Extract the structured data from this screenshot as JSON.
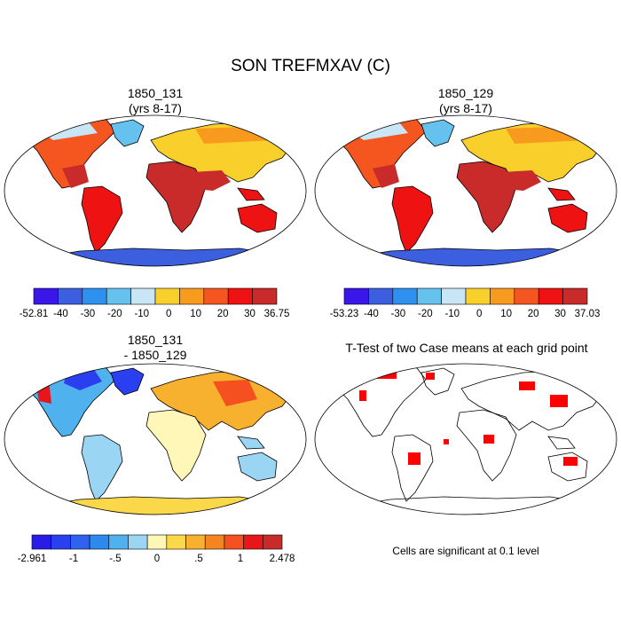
{
  "title": "SON TREFMXAV (C)",
  "panels": [
    {
      "id": "p1",
      "title_line1": "1850_131",
      "title_line2": "(yrs 8-17)",
      "type": "abs"
    },
    {
      "id": "p2",
      "title_line1": "1850_129",
      "title_line2": "(yrs 8-17)",
      "type": "abs"
    },
    {
      "id": "p3",
      "title_line1": "1850_131",
      "title_line2": "- 1850_129",
      "type": "diff"
    },
    {
      "id": "p4",
      "title_line1": "T-Test of two Case means at each grid point",
      "title_line2": "",
      "type": "ttest"
    }
  ],
  "colorbars": [
    {
      "id": "cb1",
      "colors": [
        "#3b16e8",
        "#3c5fe0",
        "#2e90ef",
        "#65c2ef",
        "#c8e6f6",
        "#f9cf2b",
        "#f79a1e",
        "#f5551f",
        "#ee1212",
        "#c92a2a"
      ],
      "labels": [
        "-52.81",
        "-40",
        "-30",
        "-20",
        "-10",
        "0",
        "10",
        "20",
        "30",
        "36.75"
      ]
    },
    {
      "id": "cb2",
      "colors": [
        "#3b16e8",
        "#3c5fe0",
        "#2e90ef",
        "#65c2ef",
        "#c8e6f6",
        "#f9cf2b",
        "#f79a1e",
        "#f5551f",
        "#ee1212",
        "#c92a2a"
      ],
      "labels": [
        "-53.23",
        "-40",
        "-30",
        "-20",
        "-10",
        "0",
        "10",
        "20",
        "30",
        "37.03"
      ]
    },
    {
      "id": "cb3",
      "colors": [
        "#2a1ce8",
        "#2a3ff0",
        "#2f62f0",
        "#2c8aee",
        "#4fb1ee",
        "#9ad6f4",
        "#fff7b8",
        "#fbd84a",
        "#f8b12e",
        "#f6851f",
        "#f45020",
        "#e8151a",
        "#c92a2a"
      ],
      "labels": [
        "-2.961",
        "",
        "-1",
        "",
        "-.5",
        "",
        "0",
        "",
        ".5",
        "",
        "1",
        "",
        "2.478"
      ]
    }
  ],
  "note": "Cells are significant at 0.1 level",
  "colors": {
    "ocean_fill": "#ffffff",
    "ttest_fill": "#ff0000",
    "outline": "#000000"
  }
}
